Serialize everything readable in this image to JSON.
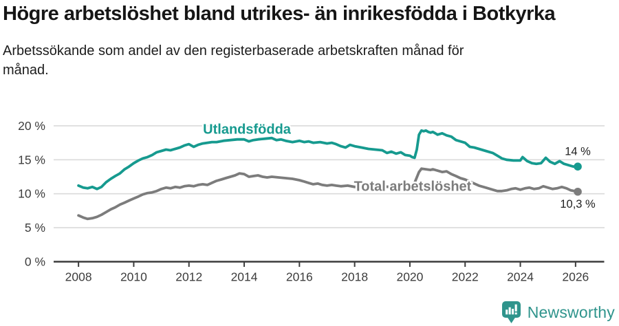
{
  "header": {
    "title": "Högre arbetslöshet bland utrikes- än inrikesfödda i Botkyrka",
    "subtitle_lines": [
      "Arbetssökande som andel av den registerbaserade arbetskraften månad för",
      "månad."
    ]
  },
  "footer": {
    "brand": "Newsworthy",
    "brand_color": "#2f948c",
    "logo_icon": "bar-chart-speech-bubble-icon"
  },
  "chart_data": {
    "type": "line",
    "title": "Högre arbetslöshet bland utrikes- än inrikesfödda i Botkyrka",
    "subtitle": "Arbetssökande som andel av den registerbaserade arbetskraften månad för månad.",
    "grid": true,
    "legend_position": "inline-labels",
    "colors": {
      "grid": "#dadada",
      "axis": "#3c3c3c",
      "tick_text": "#3d3d3d",
      "annotation_text": "#1f1f1f"
    },
    "x_axis": {
      "range": [
        2007.1,
        2027.05
      ],
      "ticks": [
        {
          "v": 2008,
          "label": "2008"
        },
        {
          "v": 2010,
          "label": "2010"
        },
        {
          "v": 2012,
          "label": "2012"
        },
        {
          "v": 2014,
          "label": "2014"
        },
        {
          "v": 2016,
          "label": "2016"
        },
        {
          "v": 2018,
          "label": "2018"
        },
        {
          "v": 2020,
          "label": "2020"
        },
        {
          "v": 2022,
          "label": "2022"
        },
        {
          "v": 2024,
          "label": "2024"
        },
        {
          "v": 2026,
          "label": "2026"
        }
      ]
    },
    "y_axis": {
      "range": [
        0,
        22.3
      ],
      "ticks": [
        {
          "v": 0,
          "label": "0 %"
        },
        {
          "v": 5,
          "label": "5 %"
        },
        {
          "v": 10,
          "label": "10 %"
        },
        {
          "v": 15,
          "label": "15 %"
        },
        {
          "v": 20,
          "label": "20 %"
        }
      ]
    },
    "series": [
      {
        "name": "Utlandsfödda",
        "color": "#169a8f",
        "name_label_pos": [
          2014.1,
          19.35
        ],
        "end_label": "14 %",
        "end_label_offset": [
          0,
          -21
        ],
        "points": [
          [
            2008.0,
            11.2
          ],
          [
            2008.17,
            10.9
          ],
          [
            2008.33,
            10.8
          ],
          [
            2008.5,
            11.0
          ],
          [
            2008.67,
            10.7
          ],
          [
            2008.83,
            11.0
          ],
          [
            2009.0,
            11.7
          ],
          [
            2009.17,
            12.2
          ],
          [
            2009.33,
            12.6
          ],
          [
            2009.5,
            13.0
          ],
          [
            2009.67,
            13.6
          ],
          [
            2009.83,
            14.0
          ],
          [
            2010.0,
            14.5
          ],
          [
            2010.17,
            14.9
          ],
          [
            2010.33,
            15.2
          ],
          [
            2010.5,
            15.4
          ],
          [
            2010.67,
            15.7
          ],
          [
            2010.83,
            16.1
          ],
          [
            2011.0,
            16.3
          ],
          [
            2011.17,
            16.5
          ],
          [
            2011.33,
            16.4
          ],
          [
            2011.5,
            16.6
          ],
          [
            2011.67,
            16.8
          ],
          [
            2011.83,
            17.1
          ],
          [
            2012.0,
            17.3
          ],
          [
            2012.17,
            16.9
          ],
          [
            2012.33,
            17.2
          ],
          [
            2012.5,
            17.4
          ],
          [
            2012.67,
            17.5
          ],
          [
            2012.83,
            17.6
          ],
          [
            2013.0,
            17.6
          ],
          [
            2013.25,
            17.8
          ],
          [
            2013.5,
            17.9
          ],
          [
            2013.75,
            18.0
          ],
          [
            2014.0,
            18.0
          ],
          [
            2014.17,
            17.7
          ],
          [
            2014.33,
            17.9
          ],
          [
            2014.5,
            18.0
          ],
          [
            2014.75,
            18.1
          ],
          [
            2015.0,
            18.2
          ],
          [
            2015.17,
            17.9
          ],
          [
            2015.33,
            18.0
          ],
          [
            2015.5,
            17.8
          ],
          [
            2015.75,
            17.6
          ],
          [
            2016.0,
            17.8
          ],
          [
            2016.17,
            17.6
          ],
          [
            2016.33,
            17.7
          ],
          [
            2016.5,
            17.5
          ],
          [
            2016.75,
            17.6
          ],
          [
            2017.0,
            17.4
          ],
          [
            2017.17,
            17.5
          ],
          [
            2017.33,
            17.3
          ],
          [
            2017.5,
            17.0
          ],
          [
            2017.67,
            16.8
          ],
          [
            2017.83,
            17.2
          ],
          [
            2018.0,
            17.0
          ],
          [
            2018.25,
            16.8
          ],
          [
            2018.5,
            16.6
          ],
          [
            2018.75,
            16.5
          ],
          [
            2019.0,
            16.4
          ],
          [
            2019.17,
            16.0
          ],
          [
            2019.33,
            16.2
          ],
          [
            2019.5,
            15.9
          ],
          [
            2019.67,
            16.1
          ],
          [
            2019.83,
            15.7
          ],
          [
            2020.0,
            15.6
          ],
          [
            2020.08,
            15.4
          ],
          [
            2020.17,
            15.3
          ],
          [
            2020.25,
            16.5
          ],
          [
            2020.33,
            18.7
          ],
          [
            2020.42,
            19.3
          ],
          [
            2020.5,
            19.2
          ],
          [
            2020.58,
            19.3
          ],
          [
            2020.67,
            19.1
          ],
          [
            2020.75,
            19.0
          ],
          [
            2020.83,
            19.1
          ],
          [
            2020.92,
            18.9
          ],
          [
            2021.0,
            18.7
          ],
          [
            2021.17,
            18.9
          ],
          [
            2021.33,
            18.6
          ],
          [
            2021.5,
            18.4
          ],
          [
            2021.67,
            17.9
          ],
          [
            2021.83,
            17.7
          ],
          [
            2022.0,
            17.5
          ],
          [
            2022.17,
            16.9
          ],
          [
            2022.33,
            16.8
          ],
          [
            2022.5,
            16.6
          ],
          [
            2022.75,
            16.3
          ],
          [
            2023.0,
            16.0
          ],
          [
            2023.17,
            15.6
          ],
          [
            2023.33,
            15.2
          ],
          [
            2023.5,
            15.0
          ],
          [
            2023.75,
            14.9
          ],
          [
            2024.0,
            14.9
          ],
          [
            2024.08,
            15.4
          ],
          [
            2024.25,
            14.8
          ],
          [
            2024.42,
            14.5
          ],
          [
            2024.58,
            14.4
          ],
          [
            2024.75,
            14.5
          ],
          [
            2024.92,
            15.3
          ],
          [
            2025.08,
            14.7
          ],
          [
            2025.25,
            14.4
          ],
          [
            2025.42,
            14.8
          ],
          [
            2025.58,
            14.4
          ],
          [
            2025.75,
            14.2
          ],
          [
            2025.92,
            14.0
          ],
          [
            2026.08,
            14.0
          ]
        ]
      },
      {
        "name": "Total arbetslöshet",
        "color": "#7c7c7c",
        "name_label_pos": [
          2020.1,
          10.95
        ],
        "end_label": "10,3 %",
        "end_label_offset": [
          0,
          19
        ],
        "points": [
          [
            2008.0,
            6.8
          ],
          [
            2008.17,
            6.5
          ],
          [
            2008.33,
            6.3
          ],
          [
            2008.5,
            6.4
          ],
          [
            2008.67,
            6.6
          ],
          [
            2008.83,
            6.9
          ],
          [
            2009.0,
            7.3
          ],
          [
            2009.17,
            7.7
          ],
          [
            2009.33,
            8.0
          ],
          [
            2009.5,
            8.4
          ],
          [
            2009.67,
            8.7
          ],
          [
            2009.83,
            9.0
          ],
          [
            2010.0,
            9.3
          ],
          [
            2010.17,
            9.6
          ],
          [
            2010.33,
            9.9
          ],
          [
            2010.5,
            10.1
          ],
          [
            2010.67,
            10.2
          ],
          [
            2010.83,
            10.4
          ],
          [
            2011.0,
            10.7
          ],
          [
            2011.17,
            10.9
          ],
          [
            2011.33,
            10.8
          ],
          [
            2011.5,
            11.0
          ],
          [
            2011.67,
            10.9
          ],
          [
            2011.83,
            11.1
          ],
          [
            2012.0,
            11.2
          ],
          [
            2012.17,
            11.1
          ],
          [
            2012.33,
            11.3
          ],
          [
            2012.5,
            11.4
          ],
          [
            2012.67,
            11.3
          ],
          [
            2012.83,
            11.6
          ],
          [
            2013.0,
            11.9
          ],
          [
            2013.17,
            12.1
          ],
          [
            2013.33,
            12.3
          ],
          [
            2013.5,
            12.5
          ],
          [
            2013.67,
            12.7
          ],
          [
            2013.83,
            13.0
          ],
          [
            2014.0,
            12.9
          ],
          [
            2014.17,
            12.5
          ],
          [
            2014.33,
            12.6
          ],
          [
            2014.5,
            12.7
          ],
          [
            2014.67,
            12.5
          ],
          [
            2014.83,
            12.4
          ],
          [
            2015.0,
            12.5
          ],
          [
            2015.25,
            12.4
          ],
          [
            2015.5,
            12.3
          ],
          [
            2015.75,
            12.2
          ],
          [
            2016.0,
            12.0
          ],
          [
            2016.17,
            11.8
          ],
          [
            2016.33,
            11.6
          ],
          [
            2016.5,
            11.4
          ],
          [
            2016.67,
            11.5
          ],
          [
            2016.83,
            11.3
          ],
          [
            2017.0,
            11.2
          ],
          [
            2017.17,
            11.3
          ],
          [
            2017.33,
            11.2
          ],
          [
            2017.5,
            11.1
          ],
          [
            2017.75,
            11.2
          ],
          [
            2018.0,
            11.0
          ],
          [
            2018.25,
            11.1
          ],
          [
            2018.5,
            10.9
          ],
          [
            2018.75,
            11.0
          ],
          [
            2019.0,
            11.1
          ],
          [
            2019.25,
            11.0
          ],
          [
            2019.5,
            11.2
          ],
          [
            2019.75,
            11.1
          ],
          [
            2020.0,
            11.3
          ],
          [
            2020.17,
            11.6
          ],
          [
            2020.33,
            13.2
          ],
          [
            2020.42,
            13.7
          ],
          [
            2020.58,
            13.6
          ],
          [
            2020.75,
            13.5
          ],
          [
            2020.83,
            13.6
          ],
          [
            2021.0,
            13.4
          ],
          [
            2021.17,
            13.2
          ],
          [
            2021.33,
            13.3
          ],
          [
            2021.5,
            12.9
          ],
          [
            2021.67,
            12.6
          ],
          [
            2021.83,
            12.3
          ],
          [
            2022.0,
            12.1
          ],
          [
            2022.17,
            11.8
          ],
          [
            2022.33,
            11.5
          ],
          [
            2022.5,
            11.2
          ],
          [
            2022.75,
            10.9
          ],
          [
            2023.0,
            10.6
          ],
          [
            2023.17,
            10.4
          ],
          [
            2023.33,
            10.4
          ],
          [
            2023.5,
            10.5
          ],
          [
            2023.67,
            10.7
          ],
          [
            2023.83,
            10.8
          ],
          [
            2024.0,
            10.6
          ],
          [
            2024.17,
            10.8
          ],
          [
            2024.33,
            10.9
          ],
          [
            2024.5,
            10.7
          ],
          [
            2024.67,
            10.8
          ],
          [
            2024.83,
            11.1
          ],
          [
            2025.0,
            10.9
          ],
          [
            2025.17,
            10.7
          ],
          [
            2025.33,
            10.8
          ],
          [
            2025.5,
            11.0
          ],
          [
            2025.67,
            10.8
          ],
          [
            2025.83,
            10.5
          ],
          [
            2026.08,
            10.3
          ]
        ]
      }
    ]
  }
}
